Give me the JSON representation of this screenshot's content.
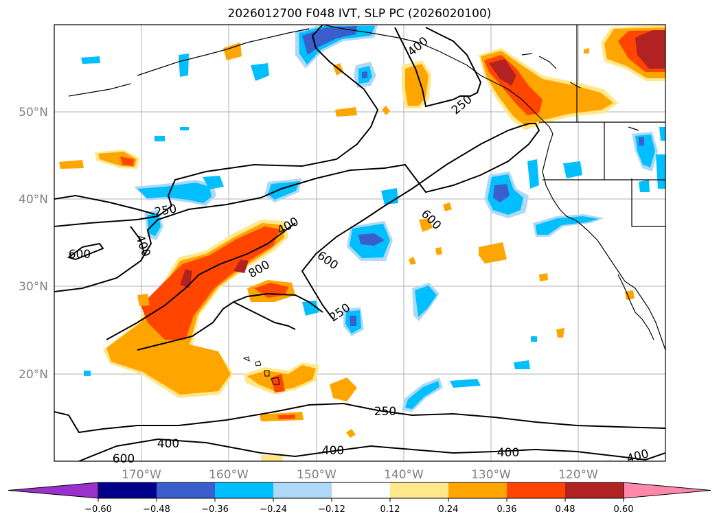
{
  "title": "2026012700 F048 IVT, SLP PC (2026020100)",
  "map": {
    "lon_labels": [
      "170°W",
      "160°W",
      "150°W",
      "140°W",
      "130°W",
      "120°W"
    ],
    "lat_labels": [
      "50°N",
      "40°N",
      "30°N",
      "20°N"
    ]
  },
  "contour_labels": [
    "400",
    "250",
    "250",
    "400",
    "600",
    "400",
    "800",
    "600",
    "600",
    "250",
    "250",
    "400",
    "600",
    "400",
    "400"
  ],
  "colorbar": {
    "tick_labels": [
      "−0.60",
      "−0.48",
      "−0.36",
      "−0.24",
      "−0.12",
      "0.12",
      "0.24",
      "0.36",
      "0.48",
      "0.60"
    ],
    "colors": [
      "#9932cc",
      "#00008b",
      "#3a5fcd",
      "#00bfff",
      "#add8f6",
      "#ffffff",
      "#ffe88c",
      "#ffa500",
      "#ff4500",
      "#b22222",
      "#ff88aa"
    ]
  }
}
